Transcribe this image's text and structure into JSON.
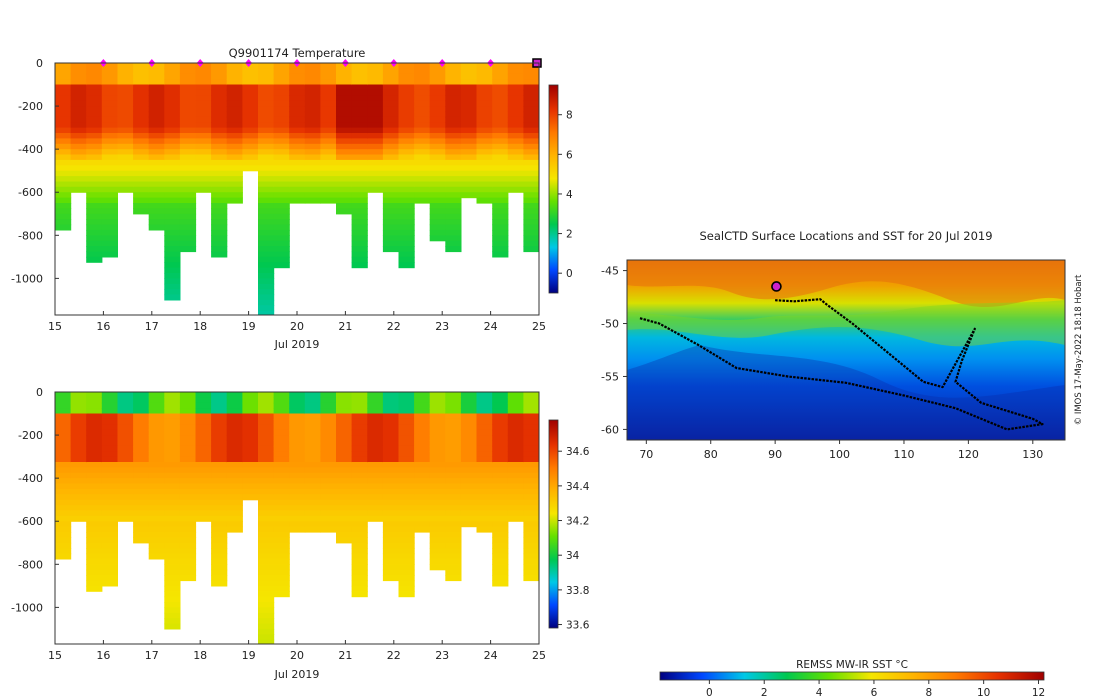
{
  "chart_data": [
    {
      "type": "heatmap",
      "title": "Q9901174  Temperature",
      "xlabel": "Jul 2019",
      "ylabel": "",
      "x_ticks": [
        15,
        16,
        17,
        18,
        19,
        20,
        21,
        22,
        23,
        24,
        25
      ],
      "xlim": [
        15,
        25
      ],
      "y_ticks": [
        0,
        -200,
        -400,
        -600,
        -800,
        -1000
      ],
      "ylim": [
        -1170,
        0
      ],
      "colorbar": {
        "ticks": [
          0,
          2,
          4,
          6,
          8
        ],
        "range": [
          -1,
          9.5
        ]
      },
      "marker_days": [
        16,
        17,
        18,
        19,
        20,
        21,
        22,
        23,
        24
      ],
      "profile_max_depth": [
        770,
        600,
        905,
        900,
        580,
        700,
        770,
        1090,
        860,
        590,
        900,
        650,
        500,
        1170,
        940,
        630,
        630,
        630,
        700,
        945,
        590,
        855,
        940,
        640,
        810,
        865,
        620,
        630,
        880,
        600,
        860
      ],
      "colormap": [
        "#00007f",
        "#0047ff",
        "#00c8e6",
        "#00c850",
        "#64e000",
        "#f5e600",
        "#ffb400",
        "#ff7a00",
        "#e63200",
        "#a00000"
      ]
    },
    {
      "type": "heatmap",
      "title": "",
      "xlabel": "Jul 2019",
      "ylabel": "",
      "x_ticks": [
        15,
        16,
        17,
        18,
        19,
        20,
        21,
        22,
        23,
        24,
        25
      ],
      "xlim": [
        15,
        25
      ],
      "y_ticks": [
        0,
        -200,
        -400,
        -600,
        -800,
        -1000
      ],
      "ylim": [
        -1170,
        0
      ],
      "colorbar": {
        "ticks": [
          33.6,
          33.8,
          34,
          34.2,
          34.4,
          34.6
        ],
        "range": [
          33.58,
          34.78
        ]
      }
    },
    {
      "type": "heatmap",
      "title": "SealCTD Surface Locations and SST for 20 Jul 2019",
      "xlabel": "",
      "ylabel": "",
      "x_ticks": [
        70,
        80,
        90,
        100,
        110,
        120,
        130
      ],
      "xlim": [
        67,
        135
      ],
      "y_ticks": [
        -45,
        -50,
        -55,
        -60
      ],
      "ylim": [
        -61,
        -44
      ],
      "track": [
        [
          90,
          -47.8
        ],
        [
          93,
          -47.9
        ],
        [
          97,
          -47.7
        ],
        [
          98,
          -48.2
        ],
        [
          102,
          -50
        ],
        [
          106,
          -52
        ],
        [
          110,
          -54
        ],
        [
          113,
          -55.5
        ],
        [
          116,
          -56
        ],
        [
          121,
          -50.5
        ],
        [
          119,
          -53.5
        ],
        [
          118,
          -55.5
        ],
        [
          122,
          -57.5
        ],
        [
          130,
          -59
        ],
        [
          131.5,
          -59.5
        ],
        [
          126,
          -60
        ],
        [
          118,
          -58
        ],
        [
          110,
          -56.8
        ],
        [
          101,
          -55.6
        ],
        [
          92,
          -55
        ],
        [
          84,
          -54.2
        ],
        [
          78,
          -52
        ],
        [
          72,
          -50
        ],
        [
          69,
          -49.5
        ]
      ],
      "current_position": [
        90.2,
        -46.5
      ],
      "colorbar": {
        "label": "REMSS MW-IR SST °C",
        "ticks": [
          0,
          2,
          4,
          6,
          8,
          10,
          12
        ],
        "range": [
          -1.8,
          12.2
        ]
      },
      "credit": "© IMOS 17-May-2022 18:18 Hobart"
    }
  ]
}
